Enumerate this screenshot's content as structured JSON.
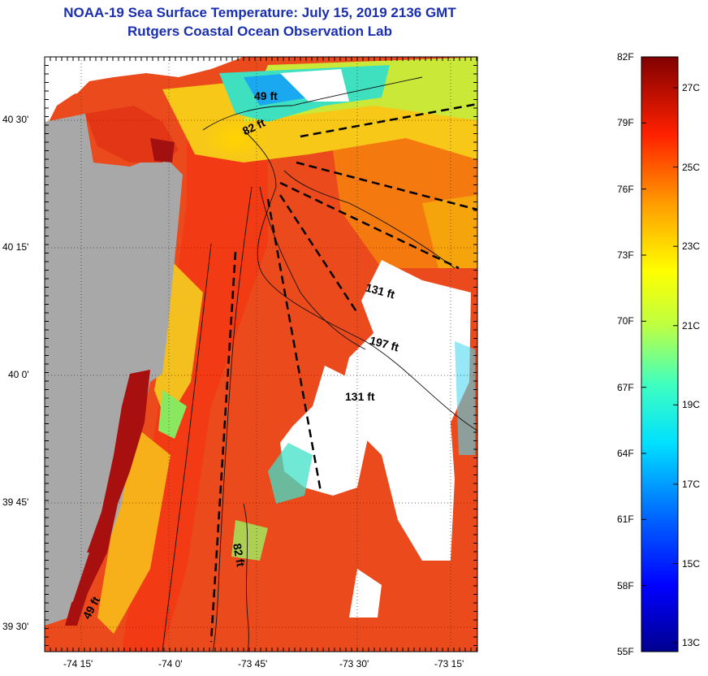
{
  "title": {
    "line1": "NOAA-19 Sea Surface Temperature:  July 15, 2019 2136 GMT",
    "line2": "Rutgers Coastal Ocean Observation Lab"
  },
  "axes": {
    "lat_ticks": [
      "40 30'",
      "40 15'",
      "40 0'",
      "39 45'",
      "39 30'"
    ],
    "lon_ticks": [
      "-74 15'",
      "-74 0'",
      "-73 45'",
      "-73 30'",
      "-73 15'"
    ]
  },
  "depth_labels": {
    "a": "49 ft",
    "b": "82 ft",
    "c": "131 ft",
    "d": "197 ft",
    "e": "131 ft",
    "f": "82 ft",
    "g": "49 ft"
  },
  "colorbar": {
    "fahrenheit": [
      "82F",
      "79F",
      "76F",
      "73F",
      "70F",
      "67F",
      "64F",
      "61F",
      "58F",
      "55F"
    ],
    "celsius": [
      "27C",
      "25C",
      "23C",
      "21C",
      "19C",
      "17C",
      "15C",
      "13C"
    ],
    "min_f": 55,
    "max_f": 82
  },
  "colors": {
    "land": "#a8a8a8",
    "cloud": "#ffffff",
    "warm": "#e8401a",
    "title": "#1a2fb0"
  }
}
